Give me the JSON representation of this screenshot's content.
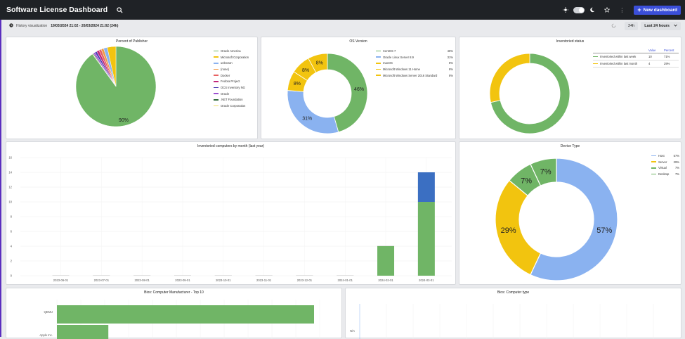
{
  "header": {
    "title": "Software License Dashboard",
    "new_dashboard_label": "New dashboard",
    "icons": [
      "search-icon",
      "sun-icon",
      "moon-icon",
      "star-icon",
      "more-vert-icon",
      "plus-icon"
    ]
  },
  "subbar": {
    "label": "History visualization",
    "range": "19/03/2024 21:02 - 20/03/2024 21:02 (24h)",
    "period_short": "24h",
    "period_select": "Last 24 hours"
  },
  "colors": {
    "green": "#70b566",
    "blue": "#8ab2f0",
    "yellow": "#f2c40f",
    "darkblue": "#3b6fc2",
    "brand": "#3b4fd9"
  },
  "publisher": {
    "title": "Percent of Publisher",
    "chart_data": {
      "type": "pie",
      "slices": [
        {
          "name": "Oracle America",
          "value": 90,
          "color": "#70b566"
        },
        {
          "name": "Microsoft Corporation",
          "value": 3.5,
          "color": "#f2c40f"
        },
        {
          "name": "unknown",
          "value": 1.5,
          "color": "#8ab2f0"
        },
        {
          "name": "(none)",
          "value": 1,
          "color": "#f09a45"
        },
        {
          "name": "Docker",
          "value": 1,
          "color": "#e86161"
        },
        {
          "name": "Fedora Project",
          "value": 1,
          "color": "#c2287a"
        },
        {
          "name": "OCS Inventory NG",
          "value": 0.8,
          "color": "#4a3bb2"
        },
        {
          "name": "Oracle",
          "value": 0.7,
          "color": "#9d4fd1"
        },
        {
          "name": ".NET Foundation",
          "value": 0.3,
          "color": "#2f6b3b"
        },
        {
          "name": "Oracle Corporation",
          "value": 0.2,
          "color": "#f0df67"
        }
      ],
      "labels": [
        "90%"
      ]
    }
  },
  "os": {
    "title": "OS Version",
    "chart_data": {
      "type": "pie",
      "slices": [
        {
          "name": "CentOS 7",
          "value": 46,
          "label": "46%",
          "color": "#70b566"
        },
        {
          "name": "Oracle Linux Server 8.9",
          "value": 31,
          "label": "31%",
          "color": "#8ab2f0"
        },
        {
          "name": "macOS",
          "value": 8,
          "label": "8%",
          "color": "#f2c40f"
        },
        {
          "name": "Microsoft Windows 11 Home",
          "value": 8,
          "label": "8%",
          "color": "#f2c40f"
        },
        {
          "name": "Microsoft Windows Server 2016 Standard",
          "value": 8,
          "label": "8%",
          "color": "#f2c40f"
        }
      ]
    }
  },
  "inventoried": {
    "title": "Inventoried status",
    "headers": [
      "Value",
      "Percent"
    ],
    "chart_data": {
      "type": "pie",
      "slices": [
        {
          "name": "Inventoried within last week",
          "value": 10,
          "percent": "71%",
          "color": "#70b566"
        },
        {
          "name": "Inventoried within last month",
          "value": 4,
          "percent": "29%",
          "color": "#f2c40f"
        }
      ]
    }
  },
  "bymonth": {
    "title": "Inventoried computers by month (last year)",
    "chart_data": {
      "type": "bar",
      "categories": [
        "2023-06-01",
        "2023-07-01",
        "2023-08-01",
        "2023-09-01",
        "2023-10-01",
        "2023-11-01",
        "2023-12-01",
        "2024-01-01",
        "2024-02-01",
        "2024-03-01"
      ],
      "series": [
        {
          "values": [
            0,
            0,
            0,
            0,
            0,
            0,
            0,
            0,
            4,
            10
          ],
          "color": "#70b566"
        },
        {
          "values": [
            0,
            0,
            0,
            0,
            0,
            0,
            0,
            0,
            0,
            4
          ],
          "color": "#3b6fc2"
        }
      ],
      "ylim": [
        0,
        16
      ],
      "yticks": [
        0,
        2,
        4,
        6,
        8,
        10,
        12,
        14,
        16
      ]
    }
  },
  "device": {
    "title": "Device Type",
    "chart_data": {
      "type": "pie",
      "slices": [
        {
          "name": "Host",
          "value": 57,
          "label": "57%",
          "color": "#8ab2f0"
        },
        {
          "name": "Server",
          "value": 29,
          "label": "29%",
          "color": "#f2c40f"
        },
        {
          "name": "Virtual",
          "value": 7,
          "label": "7%",
          "color": "#70b566"
        },
        {
          "name": "Desktop",
          "value": 7,
          "label": "7%",
          "color": "#70b566"
        }
      ]
    }
  },
  "bios_manufacturer": {
    "title": "Bios: Computer Manufacturer - Top 10",
    "chart_data": {
      "type": "bar",
      "orientation": "horizontal",
      "categories": [
        "QEMU",
        "Apple Inc."
      ],
      "values": [
        10,
        2
      ],
      "color": "#70b566"
    }
  },
  "bios_type": {
    "title": "Bios: Computer type",
    "chart_data": {
      "type": "bar",
      "categories": [
        "N/A"
      ]
    }
  }
}
